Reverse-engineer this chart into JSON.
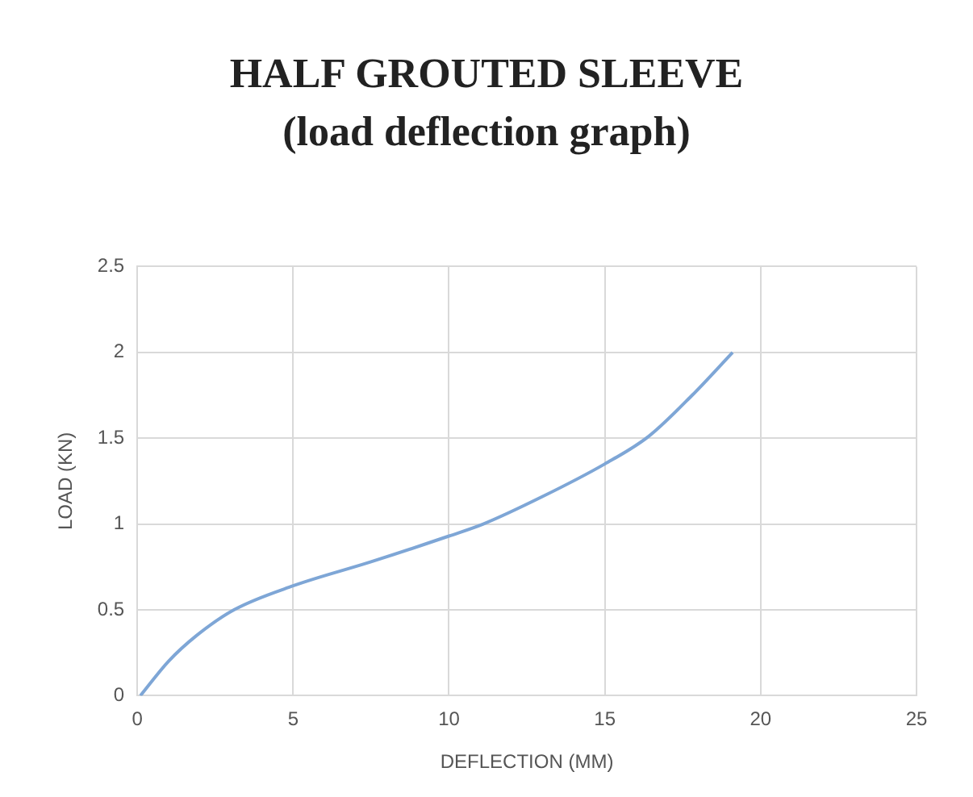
{
  "chart_data": {
    "type": "line",
    "title": "HALF GROUTED SLEEVE (load deflection graph)",
    "xlabel": "DEFLECTION (MM)",
    "ylabel": "LOAD (KN)",
    "series": [
      {
        "color": "#7ea6d6",
        "x": [
          0.1,
          1,
          1.9,
          3.1,
          5,
          7.5,
          10,
          11.1,
          13,
          15,
          16.4,
          17.8,
          19.1
        ],
        "values": [
          0,
          0.2,
          0.35,
          0.5,
          0.64,
          0.78,
          0.93,
          1.0,
          1.16,
          1.35,
          1.51,
          1.75,
          2.0
        ]
      }
    ],
    "xlim": [
      0,
      25
    ],
    "xticks": [
      0,
      5,
      10,
      15,
      20,
      25
    ],
    "ylim": [
      0,
      2.5
    ],
    "yticks": [
      0,
      0.5,
      1,
      1.5,
      2,
      2.5
    ],
    "grid": true,
    "legend": false,
    "marker": "none",
    "line_style": "solid"
  }
}
